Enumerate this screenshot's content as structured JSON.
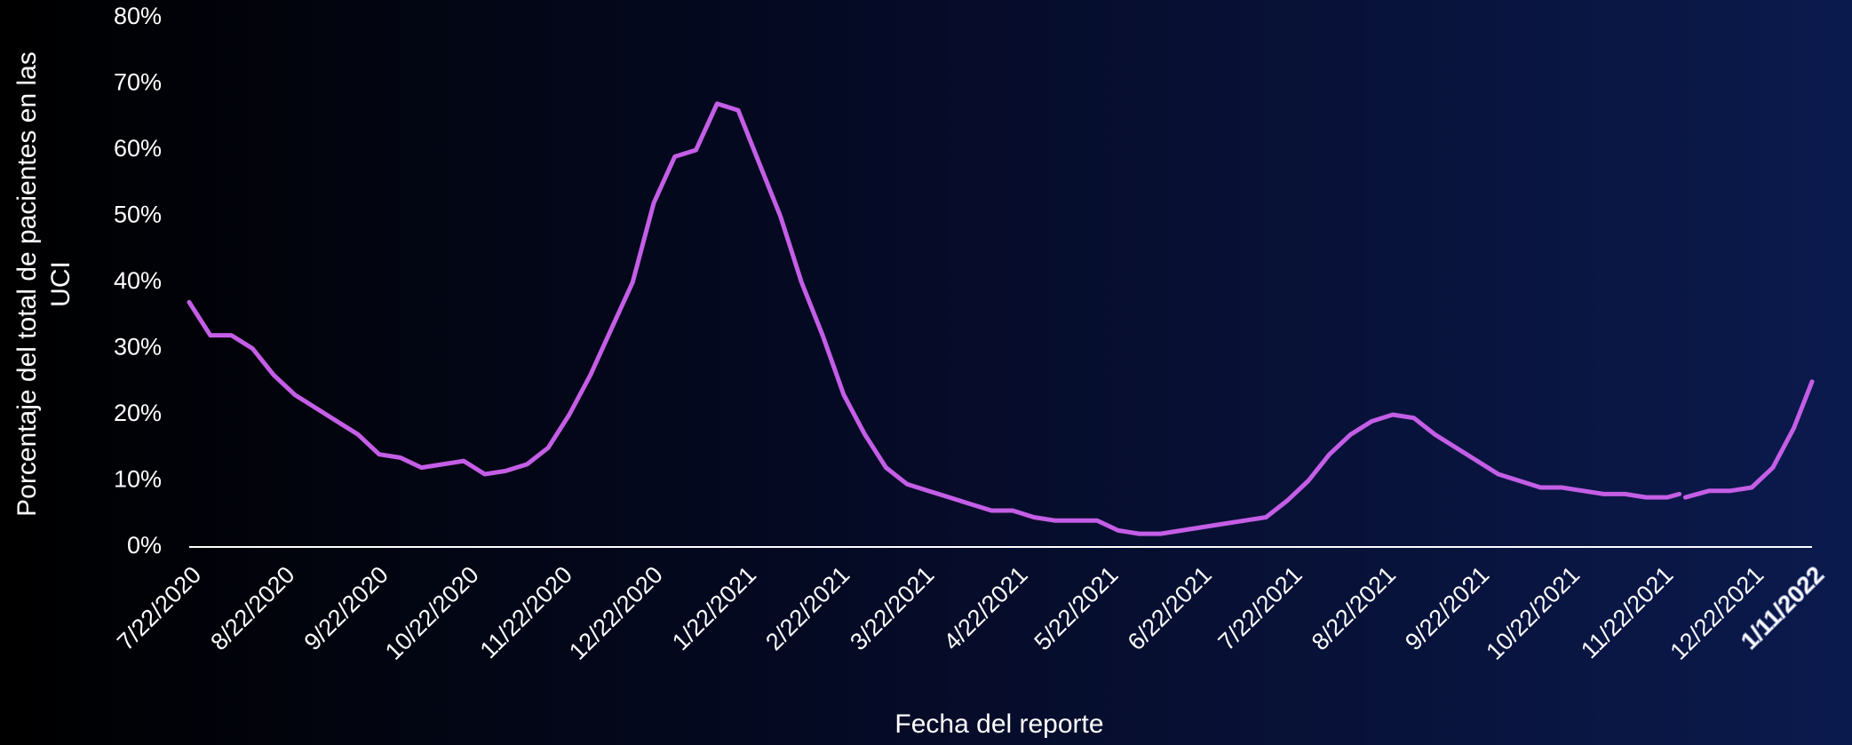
{
  "chart_data": {
    "type": "line",
    "xlabel": "Fecha del reporte",
    "ylabel": [
      "Porcentaje del total de pacientes  en las",
      "UCI"
    ],
    "x": [
      "7/22/2020",
      "7/29/2020",
      "8/5/2020",
      "8/12/2020",
      "8/19/2020",
      "8/26/2020",
      "9/2/2020",
      "9/9/2020",
      "9/16/2020",
      "9/23/2020",
      "9/30/2020",
      "10/7/2020",
      "10/14/2020",
      "10/21/2020",
      "10/28/2020",
      "11/4/2020",
      "11/11/2020",
      "11/18/2020",
      "11/25/2020",
      "12/2/2020",
      "12/9/2020",
      "12/16/2020",
      "12/23/2020",
      "12/30/2020",
      "1/6/2021",
      "1/13/2021",
      "1/20/2021",
      "1/27/2021",
      "2/3/2021",
      "2/10/2021",
      "2/17/2021",
      "2/24/2021",
      "3/3/2021",
      "3/10/2021",
      "3/17/2021",
      "3/24/2021",
      "3/31/2021",
      "4/7/2021",
      "4/14/2021",
      "4/21/2021",
      "4/28/2021",
      "5/5/2021",
      "5/12/2021",
      "5/19/2021",
      "5/26/2021",
      "6/2/2021",
      "6/9/2021",
      "6/16/2021",
      "6/23/2021",
      "6/30/2021",
      "7/7/2021",
      "7/14/2021",
      "7/21/2021",
      "7/28/2021",
      "8/4/2021",
      "8/11/2021",
      "8/18/2021",
      "8/25/2021",
      "9/1/2021",
      "9/8/2021",
      "9/15/2021",
      "9/22/2021",
      "9/29/2021",
      "10/6/2021",
      "10/13/2021",
      "10/20/2021",
      "10/27/2021",
      "11/3/2021",
      "11/10/2021",
      "11/17/2021",
      "11/24/2021",
      "11/28/2021",
      "11/29/2021",
      "11/30/2021",
      "12/8/2021",
      "12/15/2021",
      "12/22/2021",
      "12/29/2021",
      "1/5/2022",
      "1/11/2022"
    ],
    "series": [
      {
        "name": "UCI",
        "color": "#c45ee6",
        "values": [
          37,
          32,
          32,
          30,
          26,
          23,
          21,
          19,
          17,
          14,
          13.5,
          12,
          12.5,
          13,
          11,
          11.5,
          12.5,
          15,
          20,
          26,
          33,
          40,
          52,
          59,
          60,
          67,
          66,
          58,
          50,
          40,
          32,
          23,
          17,
          12,
          9.5,
          8.5,
          7.5,
          6.5,
          5.5,
          5.5,
          4.5,
          4,
          4,
          4,
          2.5,
          2,
          2,
          2.5,
          3,
          3.5,
          4,
          4.5,
          7,
          10,
          14,
          17,
          19,
          20,
          19.5,
          17,
          15,
          13,
          11,
          10,
          9,
          9,
          8.5,
          8,
          8,
          7.5,
          7.5,
          8,
          null,
          7.5,
          8.5,
          8.5,
          9,
          12,
          18,
          25
        ]
      }
    ],
    "xlim": [
      "7/22/2020",
      "1/11/2022"
    ],
    "xticks": [
      "7/22/2020",
      "8/22/2020",
      "9/22/2020",
      "10/22/2020",
      "11/22/2020",
      "12/22/2020",
      "1/22/2021",
      "2/22/2021",
      "3/22/2021",
      "4/22/2021",
      "5/22/2021",
      "6/22/2021",
      "7/22/2021",
      "8/22/2021",
      "9/22/2021",
      "10/22/2021",
      "11/22/2021",
      "12/22/2021",
      "1/11/2022"
    ],
    "ylim": [
      0,
      80
    ],
    "yticks": [
      {
        "value": 0,
        "label": "0%"
      },
      {
        "value": 10,
        "label": "10%"
      },
      {
        "value": 20,
        "label": "20%"
      },
      {
        "value": 30,
        "label": "30%"
      },
      {
        "value": 40,
        "label": "40%"
      },
      {
        "value": 50,
        "label": "50%"
      },
      {
        "value": 60,
        "label": "60%"
      },
      {
        "value": 70,
        "label": "70%"
      },
      {
        "value": 80,
        "label": "80%"
      }
    ],
    "grid": false
  }
}
